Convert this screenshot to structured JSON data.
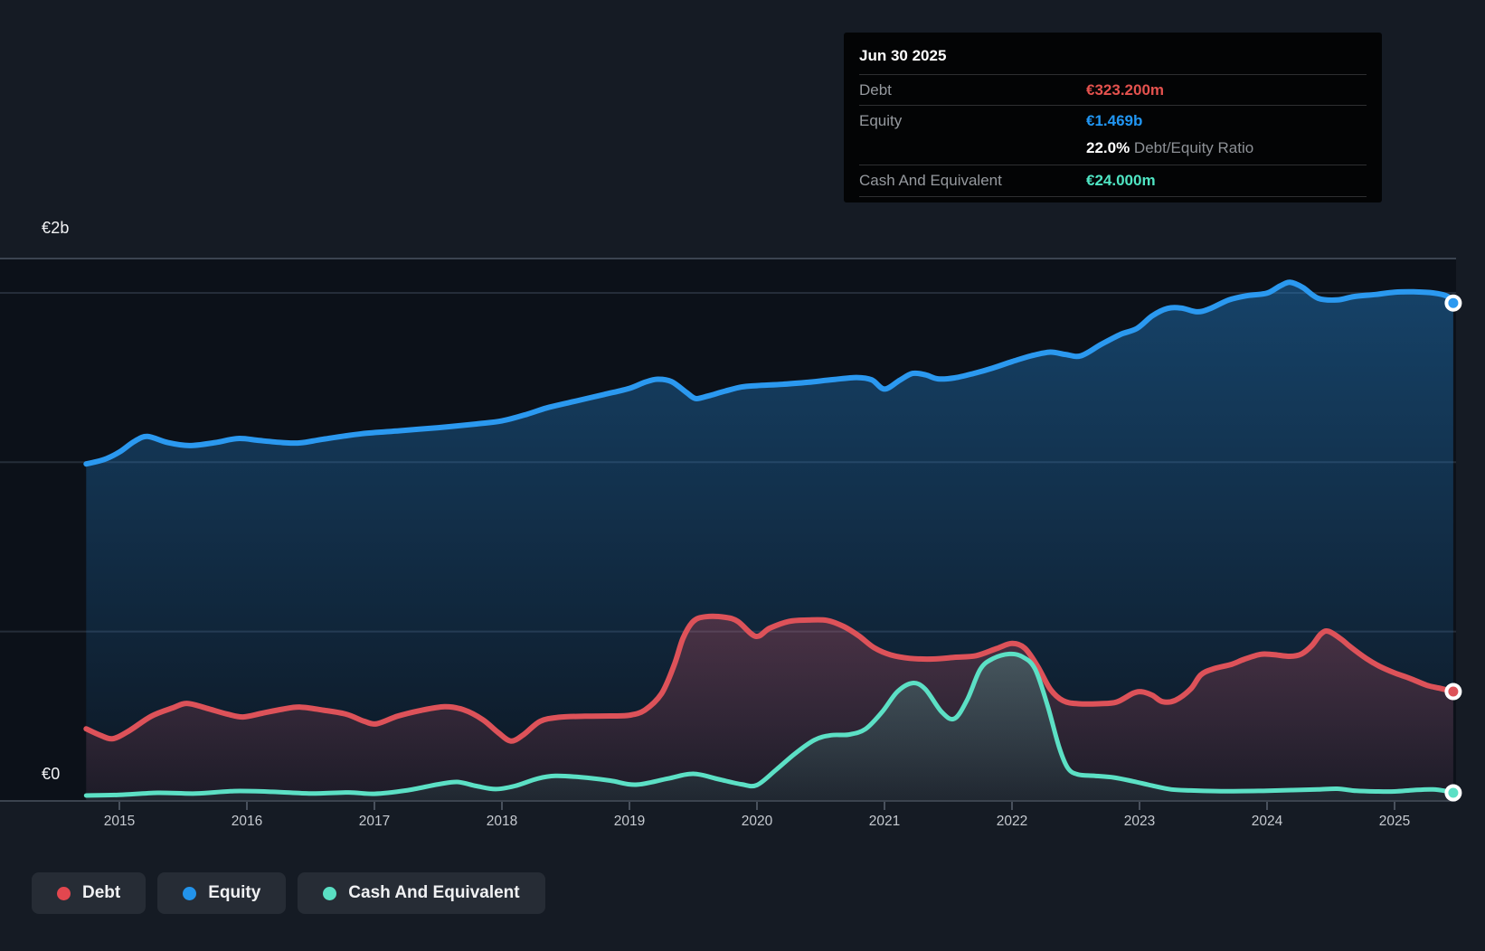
{
  "tooltip": {
    "date": "Jun 30 2025",
    "rows": {
      "debt": {
        "label": "Debt",
        "value": "€323.200m"
      },
      "equity": {
        "label": "Equity",
        "value": "€1.469b"
      },
      "ratio": {
        "value": "22.0%",
        "label": "Debt/Equity Ratio"
      },
      "cash": {
        "label": "Cash And Equivalent",
        "value": "€24.000m"
      }
    }
  },
  "axis": {
    "y_max_label": "€2b",
    "y_min_label": "€0",
    "x_labels": [
      "2015",
      "2016",
      "2017",
      "2018",
      "2019",
      "2020",
      "2021",
      "2022",
      "2023",
      "2024",
      "2025"
    ]
  },
  "legend": {
    "items": [
      {
        "label": "Debt",
        "color": "#e2474f"
      },
      {
        "label": "Equity",
        "color": "#2293ea"
      },
      {
        "label": "Cash And Equivalent",
        "color": "#5adfc3"
      }
    ]
  },
  "colors": {
    "debt_line": "#dd5259",
    "equity_line": "#2b99f0",
    "cash_line": "#5ce0c5",
    "debt_value": "#e4524e",
    "equity_value": "#2196f3",
    "cash_value": "#4fe5c3",
    "page_bg": "#151b24",
    "plot_bg": "#0c1119",
    "grid_faint": "#252d39",
    "grid_top": "#3b4450",
    "axis_line": "#3b434e"
  },
  "chart_data": {
    "type": "area",
    "title": "",
    "xlabel": "",
    "ylabel": "EUR",
    "x_unit": "decimal_year",
    "x_range": [
      2014.74,
      2025.46
    ],
    "y_unit": "EUR millions",
    "ylim": [
      0,
      2000
    ],
    "y_gridlines_m": [
      500,
      1000,
      1500
    ],
    "grid": true,
    "legend_position": "bottom-left",
    "latest_point_date": "Jun 30 2025",
    "series": [
      {
        "name": "Equity",
        "end_value_m": 1469,
        "points": [
          [
            2014.74,
            995
          ],
          [
            2014.88,
            1008
          ],
          [
            2015.0,
            1030
          ],
          [
            2015.12,
            1062
          ],
          [
            2015.22,
            1076
          ],
          [
            2015.38,
            1058
          ],
          [
            2015.55,
            1049
          ],
          [
            2015.75,
            1058
          ],
          [
            2015.93,
            1070
          ],
          [
            2016.1,
            1064
          ],
          [
            2016.28,
            1058
          ],
          [
            2016.42,
            1057
          ],
          [
            2016.6,
            1068
          ],
          [
            2016.9,
            1084
          ],
          [
            2017.2,
            1093
          ],
          [
            2017.5,
            1102
          ],
          [
            2017.8,
            1113
          ],
          [
            2018.0,
            1122
          ],
          [
            2018.2,
            1142
          ],
          [
            2018.35,
            1160
          ],
          [
            2018.55,
            1178
          ],
          [
            2018.8,
            1200
          ],
          [
            2019.0,
            1218
          ],
          [
            2019.12,
            1236
          ],
          [
            2019.22,
            1245
          ],
          [
            2019.33,
            1238
          ],
          [
            2019.45,
            1205
          ],
          [
            2019.52,
            1188
          ],
          [
            2019.62,
            1196
          ],
          [
            2019.75,
            1210
          ],
          [
            2019.88,
            1222
          ],
          [
            2020.0,
            1226
          ],
          [
            2020.2,
            1230
          ],
          [
            2020.4,
            1236
          ],
          [
            2020.6,
            1244
          ],
          [
            2020.78,
            1250
          ],
          [
            2020.9,
            1243
          ],
          [
            2021.0,
            1216
          ],
          [
            2021.12,
            1242
          ],
          [
            2021.22,
            1262
          ],
          [
            2021.32,
            1258
          ],
          [
            2021.42,
            1246
          ],
          [
            2021.55,
            1249
          ],
          [
            2021.7,
            1262
          ],
          [
            2021.85,
            1278
          ],
          [
            2022.0,
            1297
          ],
          [
            2022.15,
            1314
          ],
          [
            2022.3,
            1325
          ],
          [
            2022.42,
            1318
          ],
          [
            2022.54,
            1314
          ],
          [
            2022.7,
            1348
          ],
          [
            2022.85,
            1377
          ],
          [
            2022.98,
            1395
          ],
          [
            2023.1,
            1432
          ],
          [
            2023.22,
            1454
          ],
          [
            2023.33,
            1455
          ],
          [
            2023.45,
            1444
          ],
          [
            2023.55,
            1453
          ],
          [
            2023.7,
            1479
          ],
          [
            2023.85,
            1492
          ],
          [
            2024.0,
            1499
          ],
          [
            2024.1,
            1520
          ],
          [
            2024.18,
            1531
          ],
          [
            2024.28,
            1516
          ],
          [
            2024.4,
            1484
          ],
          [
            2024.55,
            1479
          ],
          [
            2024.68,
            1489
          ],
          [
            2024.85,
            1495
          ],
          [
            2025.0,
            1502
          ],
          [
            2025.15,
            1503
          ],
          [
            2025.3,
            1500
          ],
          [
            2025.42,
            1489
          ],
          [
            2025.46,
            1470
          ]
        ]
      },
      {
        "name": "Debt",
        "end_value_m": 323.2,
        "points": [
          [
            2014.74,
            213
          ],
          [
            2014.85,
            194
          ],
          [
            2014.95,
            184
          ],
          [
            2015.08,
            208
          ],
          [
            2015.25,
            250
          ],
          [
            2015.42,
            275
          ],
          [
            2015.53,
            288
          ],
          [
            2015.68,
            274
          ],
          [
            2015.85,
            256
          ],
          [
            2015.97,
            248
          ],
          [
            2016.12,
            259
          ],
          [
            2016.28,
            271
          ],
          [
            2016.42,
            277
          ],
          [
            2016.6,
            268
          ],
          [
            2016.78,
            256
          ],
          [
            2016.92,
            235
          ],
          [
            2017.02,
            228
          ],
          [
            2017.18,
            250
          ],
          [
            2017.35,
            266
          ],
          [
            2017.55,
            278
          ],
          [
            2017.7,
            269
          ],
          [
            2017.85,
            240
          ],
          [
            2017.97,
            202
          ],
          [
            2018.07,
            177
          ],
          [
            2018.17,
            196
          ],
          [
            2018.3,
            235
          ],
          [
            2018.45,
            247
          ],
          [
            2018.65,
            250
          ],
          [
            2018.85,
            251
          ],
          [
            2019.0,
            253
          ],
          [
            2019.12,
            268
          ],
          [
            2019.25,
            316
          ],
          [
            2019.35,
            400
          ],
          [
            2019.42,
            480
          ],
          [
            2019.5,
            530
          ],
          [
            2019.6,
            544
          ],
          [
            2019.75,
            542
          ],
          [
            2019.85,
            530
          ],
          [
            2019.99,
            486
          ],
          [
            2020.1,
            510
          ],
          [
            2020.25,
            530
          ],
          [
            2020.4,
            534
          ],
          [
            2020.55,
            533
          ],
          [
            2020.68,
            515
          ],
          [
            2020.8,
            487
          ],
          [
            2020.92,
            452
          ],
          [
            2021.05,
            431
          ],
          [
            2021.2,
            421
          ],
          [
            2021.38,
            419
          ],
          [
            2021.55,
            424
          ],
          [
            2021.72,
            429
          ],
          [
            2021.88,
            450
          ],
          [
            2022.0,
            465
          ],
          [
            2022.1,
            451
          ],
          [
            2022.2,
            398
          ],
          [
            2022.3,
            330
          ],
          [
            2022.4,
            296
          ],
          [
            2022.52,
            287
          ],
          [
            2022.68,
            287
          ],
          [
            2022.82,
            292
          ],
          [
            2022.95,
            318
          ],
          [
            2023.02,
            322
          ],
          [
            2023.1,
            312
          ],
          [
            2023.18,
            293
          ],
          [
            2023.28,
            297
          ],
          [
            2023.4,
            330
          ],
          [
            2023.48,
            372
          ],
          [
            2023.58,
            390
          ],
          [
            2023.72,
            403
          ],
          [
            2023.82,
            418
          ],
          [
            2023.95,
            433
          ],
          [
            2024.05,
            432
          ],
          [
            2024.18,
            427
          ],
          [
            2024.27,
            434
          ],
          [
            2024.35,
            458
          ],
          [
            2024.42,
            492
          ],
          [
            2024.48,
            501
          ],
          [
            2024.58,
            478
          ],
          [
            2024.65,
            456
          ],
          [
            2024.78,
            420
          ],
          [
            2024.88,
            398
          ],
          [
            2025.0,
            378
          ],
          [
            2025.12,
            362
          ],
          [
            2025.25,
            342
          ],
          [
            2025.35,
            333
          ],
          [
            2025.46,
            323
          ]
        ]
      },
      {
        "name": "Cash And Equivalent",
        "end_value_m": 24,
        "points": [
          [
            2014.74,
            16
          ],
          [
            2015.0,
            18
          ],
          [
            2015.3,
            24
          ],
          [
            2015.6,
            22
          ],
          [
            2015.9,
            29
          ],
          [
            2016.2,
            27
          ],
          [
            2016.5,
            22
          ],
          [
            2016.8,
            25
          ],
          [
            2017.0,
            21
          ],
          [
            2017.25,
            31
          ],
          [
            2017.5,
            49
          ],
          [
            2017.65,
            56
          ],
          [
            2017.8,
            44
          ],
          [
            2017.95,
            35
          ],
          [
            2018.1,
            44
          ],
          [
            2018.28,
            66
          ],
          [
            2018.42,
            74
          ],
          [
            2018.62,
            70
          ],
          [
            2018.85,
            60
          ],
          [
            2019.05,
            48
          ],
          [
            2019.3,
            66
          ],
          [
            2019.5,
            80
          ],
          [
            2019.7,
            64
          ],
          [
            2019.88,
            49
          ],
          [
            2020.0,
            47
          ],
          [
            2020.15,
            92
          ],
          [
            2020.3,
            140
          ],
          [
            2020.45,
            180
          ],
          [
            2020.58,
            194
          ],
          [
            2020.72,
            196
          ],
          [
            2020.85,
            212
          ],
          [
            2020.98,
            262
          ],
          [
            2021.1,
            322
          ],
          [
            2021.22,
            348
          ],
          [
            2021.32,
            330
          ],
          [
            2021.45,
            262
          ],
          [
            2021.55,
            243
          ],
          [
            2021.65,
            300
          ],
          [
            2021.75,
            388
          ],
          [
            2021.85,
            420
          ],
          [
            2021.98,
            434
          ],
          [
            2022.08,
            426
          ],
          [
            2022.18,
            390
          ],
          [
            2022.28,
            280
          ],
          [
            2022.37,
            158
          ],
          [
            2022.44,
            96
          ],
          [
            2022.52,
            78
          ],
          [
            2022.65,
            74
          ],
          [
            2022.8,
            69
          ],
          [
            2022.95,
            58
          ],
          [
            2023.1,
            45
          ],
          [
            2023.25,
            34
          ],
          [
            2023.4,
            31
          ],
          [
            2023.6,
            29
          ],
          [
            2023.8,
            29
          ],
          [
            2024.0,
            30
          ],
          [
            2024.2,
            32
          ],
          [
            2024.4,
            34
          ],
          [
            2024.55,
            36
          ],
          [
            2024.7,
            30
          ],
          [
            2024.85,
            28
          ],
          [
            2025.0,
            28
          ],
          [
            2025.15,
            32
          ],
          [
            2025.3,
            34
          ],
          [
            2025.42,
            28
          ],
          [
            2025.46,
            24
          ]
        ]
      }
    ]
  }
}
